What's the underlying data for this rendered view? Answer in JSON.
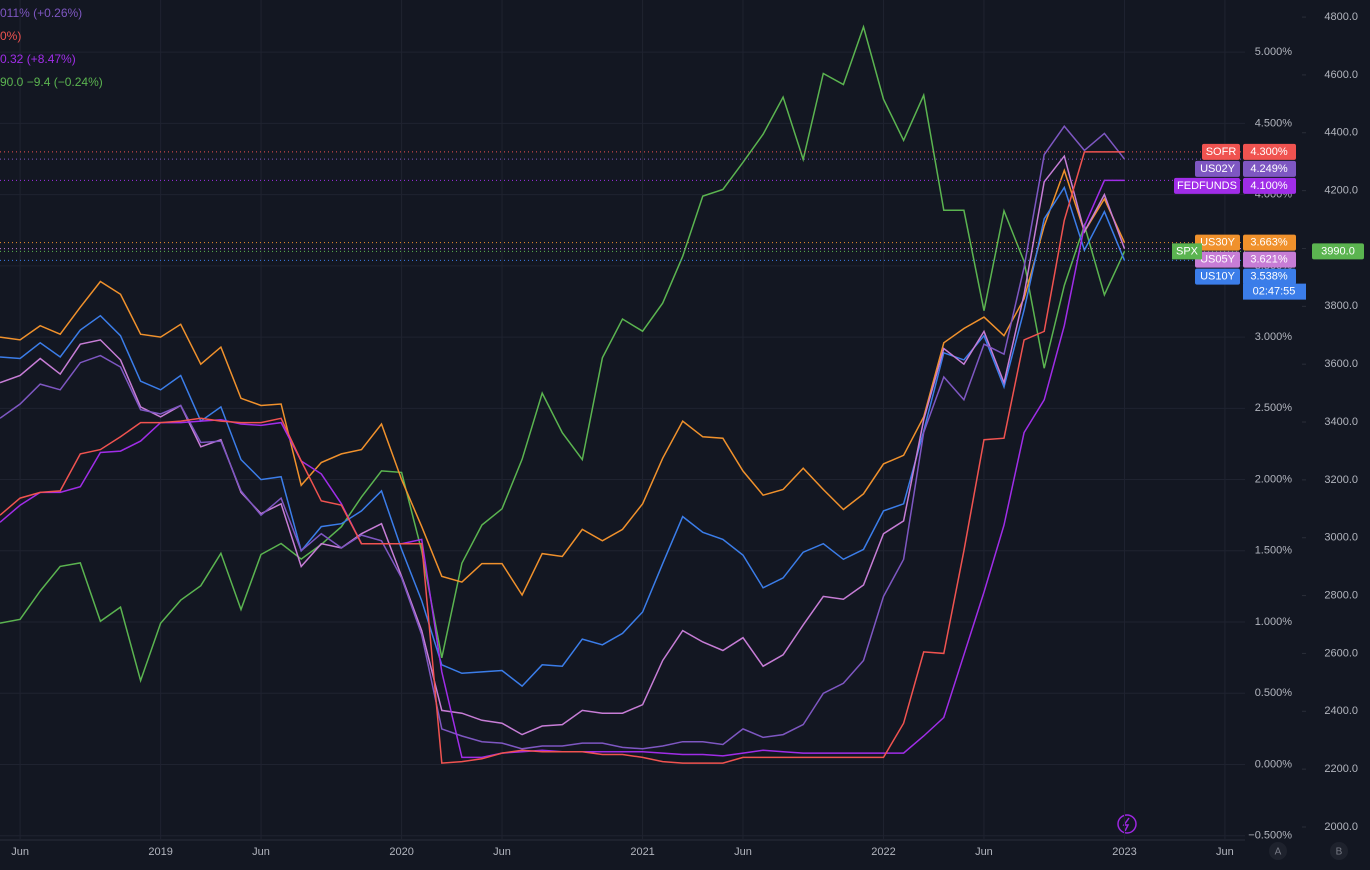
{
  "chart_data": {
    "type": "line",
    "legend_fragments": [
      {
        "text": "011% (+0.26%)",
        "color": "#7e57c2"
      },
      {
        "text": "0%)",
        "color": "#f05350"
      },
      {
        "text": "0.32 (+8.47%)",
        "color": "#a02de8"
      },
      {
        "text": "90.0  −9.4 (−0.24%)",
        "color": "#5bb450"
      }
    ],
    "x": [
      "2018-05",
      "2018-06",
      "2018-07",
      "2018-08",
      "2018-09",
      "2018-10",
      "2018-11",
      "2018-12",
      "2019-01",
      "2019-02",
      "2019-03",
      "2019-04",
      "2019-05",
      "2019-06",
      "2019-07",
      "2019-08",
      "2019-09",
      "2019-10",
      "2019-11",
      "2019-12",
      "2020-01",
      "2020-02",
      "2020-03",
      "2020-04",
      "2020-05",
      "2020-06",
      "2020-07",
      "2020-08",
      "2020-09",
      "2020-10",
      "2020-11",
      "2020-12",
      "2021-01",
      "2021-02",
      "2021-03",
      "2021-04",
      "2021-05",
      "2021-06",
      "2021-07",
      "2021-08",
      "2021-09",
      "2021-10",
      "2021-11",
      "2021-12",
      "2022-01",
      "2022-02",
      "2022-03",
      "2022-04",
      "2022-05",
      "2022-06",
      "2022-07",
      "2022-08",
      "2022-09",
      "2022-10",
      "2022-11",
      "2022-12",
      "2023-01"
    ],
    "xlim": [
      "2018-05",
      "2023-07"
    ],
    "xticks": [
      {
        "value": "2018-06",
        "label": "Jun"
      },
      {
        "value": "2019-01",
        "label": "2019"
      },
      {
        "value": "2019-06",
        "label": "Jun"
      },
      {
        "value": "2020-01",
        "label": "2020"
      },
      {
        "value": "2020-06",
        "label": "Jun"
      },
      {
        "value": "2021-01",
        "label": "2021"
      },
      {
        "value": "2021-06",
        "label": "Jun"
      },
      {
        "value": "2022-01",
        "label": "2022"
      },
      {
        "value": "2022-06",
        "label": "Jun"
      },
      {
        "value": "2023-01",
        "label": "2023"
      },
      {
        "value": "2023-06",
        "label": "Jun"
      }
    ],
    "ylim": [
      -0.53,
      5.366
    ],
    "yticks": [
      {
        "value": -0.5,
        "label": "−0.500%"
      },
      {
        "value": 0,
        "label": "0.000%"
      },
      {
        "value": 0.5,
        "label": "0.500%"
      },
      {
        "value": 1,
        "label": "1.000%"
      },
      {
        "value": 1.5,
        "label": "1.500%"
      },
      {
        "value": 2,
        "label": "2.000%"
      },
      {
        "value": 2.5,
        "label": "2.500%"
      },
      {
        "value": 3,
        "label": "3.000%"
      },
      {
        "value": 3.5,
        "label": "3.500%"
      },
      {
        "value": 4,
        "label": "4.000%"
      },
      {
        "value": 4.5,
        "label": "4.500%"
      },
      {
        "value": 5,
        "label": "5.000%"
      }
    ],
    "y2lim": [
      1955,
      4859
    ],
    "y2ticks": [
      {
        "value": 2000,
        "label": "2000.0"
      },
      {
        "value": 2200,
        "label": "2200.0"
      },
      {
        "value": 2400,
        "label": "2400.0"
      },
      {
        "value": 2600,
        "label": "2600.0"
      },
      {
        "value": 2800,
        "label": "2800.0"
      },
      {
        "value": 3000,
        "label": "3000.0"
      },
      {
        "value": 3200,
        "label": "3200.0"
      },
      {
        "value": 3400,
        "label": "3400.0"
      },
      {
        "value": 3600,
        "label": "3600.0"
      },
      {
        "value": 3800,
        "label": "3800.0"
      },
      {
        "value": 4000,
        "label": "4000.0"
      },
      {
        "value": 4200,
        "label": "4200.0"
      },
      {
        "value": 4400,
        "label": "4400.0"
      },
      {
        "value": 4600,
        "label": "4600.0"
      },
      {
        "value": 4800,
        "label": "4800.0"
      }
    ],
    "grid": true,
    "series": [
      {
        "name": "SPX",
        "color": "#5bb450",
        "axis": "y2",
        "last_label": "3990.0",
        "values": [
          2705,
          2718,
          2816,
          2901,
          2913,
          2711,
          2760,
          2506,
          2704,
          2784,
          2834,
          2946,
          2752,
          2942,
          2980,
          2926,
          2977,
          3038,
          3141,
          3231,
          3226,
          2954,
          2585,
          2912,
          3044,
          3100,
          3271,
          3500,
          3363,
          3270,
          3622,
          3756,
          3714,
          3811,
          3973,
          4181,
          4204,
          4298,
          4395,
          4523,
          4308,
          4605,
          4567,
          4766,
          4516,
          4374,
          4530,
          4132,
          4132,
          3785,
          4130,
          3955,
          3586,
          3872,
          4080,
          3840,
          3990
        ]
      },
      {
        "name": "US30Y",
        "color": "#f0912c",
        "last_label": "3.663%",
        "values": [
          3.0,
          2.98,
          3.08,
          3.02,
          3.21,
          3.39,
          3.3,
          3.02,
          3.0,
          3.09,
          2.81,
          2.93,
          2.57,
          2.52,
          2.53,
          1.96,
          2.12,
          2.18,
          2.21,
          2.39,
          2.0,
          1.67,
          1.32,
          1.28,
          1.41,
          1.41,
          1.19,
          1.48,
          1.46,
          1.65,
          1.57,
          1.65,
          1.83,
          2.15,
          2.41,
          2.3,
          2.29,
          2.06,
          1.89,
          1.93,
          2.08,
          1.93,
          1.79,
          1.9,
          2.11,
          2.17,
          2.44,
          2.96,
          3.06,
          3.14,
          3.01,
          3.27,
          3.78,
          4.17,
          3.74,
          3.97,
          3.663
        ]
      },
      {
        "name": "US10Y",
        "color": "#3b7de9",
        "last_label": "3.538%",
        "values": [
          2.86,
          2.85,
          2.96,
          2.86,
          3.05,
          3.15,
          3.01,
          2.69,
          2.63,
          2.73,
          2.41,
          2.51,
          2.14,
          2.0,
          2.02,
          1.5,
          1.67,
          1.69,
          1.78,
          1.92,
          1.51,
          1.15,
          0.7,
          0.64,
          0.65,
          0.66,
          0.55,
          0.7,
          0.69,
          0.88,
          0.84,
          0.92,
          1.07,
          1.41,
          1.74,
          1.63,
          1.58,
          1.47,
          1.24,
          1.31,
          1.49,
          1.55,
          1.44,
          1.51,
          1.78,
          1.83,
          2.34,
          2.89,
          2.84,
          3.01,
          2.65,
          3.19,
          3.83,
          4.05,
          3.61,
          3.88,
          3.538
        ]
      },
      {
        "name": "US05Y",
        "color": "#c77dd6",
        "last_label": "3.621%",
        "values": [
          2.68,
          2.73,
          2.85,
          2.74,
          2.95,
          2.98,
          2.84,
          2.51,
          2.44,
          2.52,
          2.23,
          2.28,
          1.91,
          1.76,
          1.83,
          1.39,
          1.55,
          1.52,
          1.62,
          1.69,
          1.32,
          0.94,
          0.38,
          0.36,
          0.31,
          0.29,
          0.21,
          0.27,
          0.28,
          0.38,
          0.36,
          0.36,
          0.42,
          0.73,
          0.94,
          0.86,
          0.8,
          0.89,
          0.69,
          0.77,
          0.98,
          1.18,
          1.16,
          1.26,
          1.62,
          1.71,
          2.42,
          2.92,
          2.81,
          3.04,
          2.68,
          3.3,
          4.09,
          4.27,
          3.74,
          4.0,
          3.621
        ]
      },
      {
        "name": "US02Y",
        "color": "#7e57c2",
        "last_label": "4.249%",
        "values": [
          2.43,
          2.53,
          2.67,
          2.63,
          2.82,
          2.87,
          2.79,
          2.49,
          2.46,
          2.52,
          2.26,
          2.27,
          1.92,
          1.75,
          1.87,
          1.5,
          1.62,
          1.52,
          1.61,
          1.57,
          1.31,
          0.91,
          0.25,
          0.2,
          0.16,
          0.15,
          0.11,
          0.13,
          0.13,
          0.15,
          0.15,
          0.12,
          0.11,
          0.13,
          0.16,
          0.16,
          0.14,
          0.25,
          0.19,
          0.21,
          0.28,
          0.5,
          0.57,
          0.73,
          1.18,
          1.44,
          2.33,
          2.72,
          2.56,
          2.95,
          2.88,
          3.49,
          4.28,
          4.48,
          4.31,
          4.43,
          4.249
        ]
      },
      {
        "name": "FEDFUNDS",
        "color": "#a02de8",
        "last_label": "4.100%",
        "values": [
          1.7,
          1.82,
          1.91,
          1.91,
          1.95,
          2.19,
          2.2,
          2.27,
          2.4,
          2.4,
          2.41,
          2.42,
          2.39,
          2.38,
          2.4,
          2.13,
          2.04,
          1.83,
          1.55,
          1.55,
          1.55,
          1.58,
          0.65,
          0.05,
          0.05,
          0.08,
          0.09,
          0.1,
          0.09,
          0.09,
          0.09,
          0.09,
          0.09,
          0.08,
          0.07,
          0.07,
          0.06,
          0.08,
          0.1,
          0.09,
          0.08,
          0.08,
          0.08,
          0.08,
          0.08,
          0.08,
          0.2,
          0.33,
          0.77,
          1.21,
          1.68,
          2.33,
          2.56,
          3.08,
          3.78,
          4.1,
          4.1
        ]
      },
      {
        "name": "SOFR",
        "color": "#f05350",
        "last_label": "4.300%",
        "values": [
          1.75,
          1.87,
          1.91,
          1.92,
          2.18,
          2.21,
          2.3,
          2.4,
          2.4,
          2.41,
          2.43,
          2.41,
          2.4,
          2.4,
          2.43,
          2.13,
          1.85,
          1.82,
          1.55,
          1.55,
          1.55,
          1.55,
          0.01,
          0.02,
          0.04,
          0.08,
          0.1,
          0.09,
          0.09,
          0.09,
          0.07,
          0.07,
          0.05,
          0.02,
          0.01,
          0.01,
          0.01,
          0.05,
          0.05,
          0.05,
          0.05,
          0.05,
          0.05,
          0.05,
          0.05,
          0.29,
          0.79,
          0.78,
          1.5,
          2.28,
          2.29,
          2.98,
          3.04,
          3.82,
          4.3,
          4.3,
          4.3
        ]
      }
    ],
    "countdown": "02:47:55",
    "scale_buttons": [
      "A",
      "B"
    ]
  }
}
